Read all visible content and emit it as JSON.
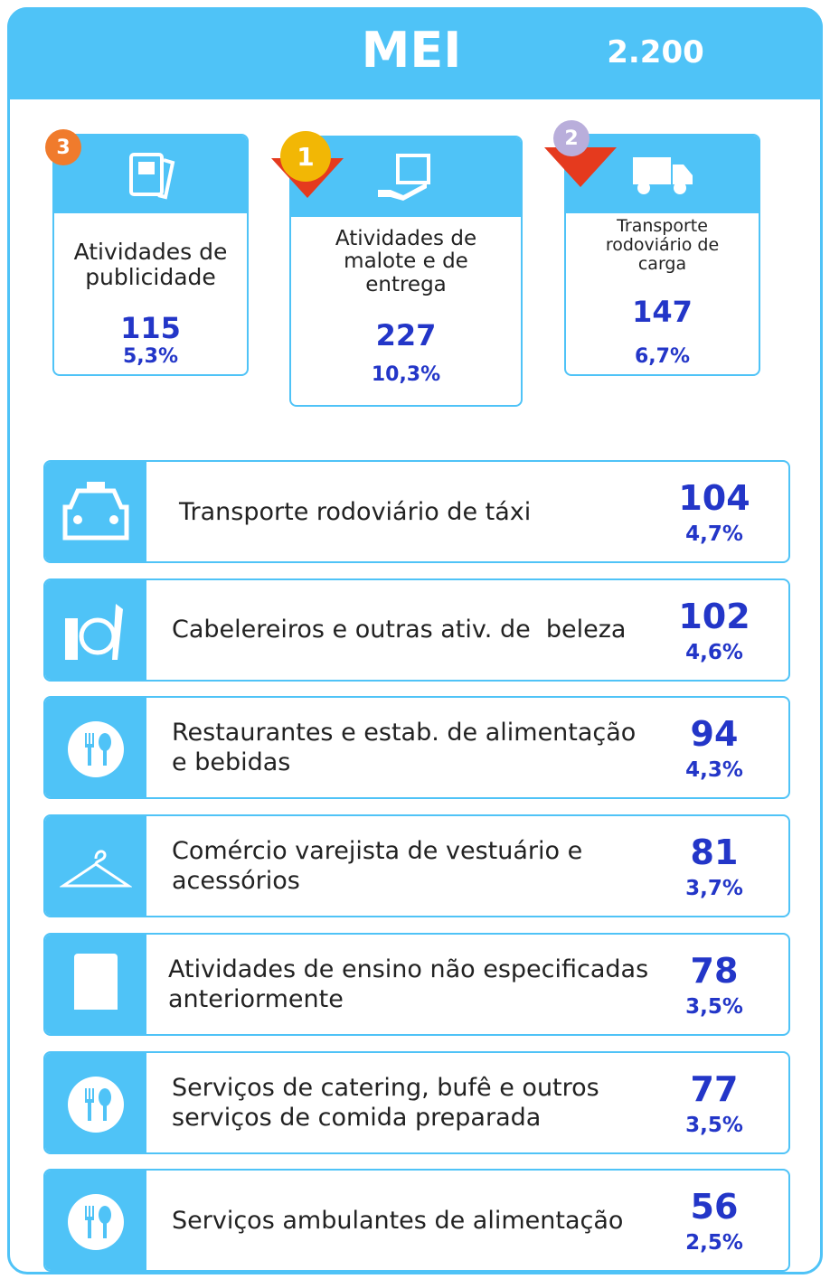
{
  "header": {
    "title": "MEI",
    "total": "2.200"
  },
  "podium": [
    {
      "rank": "3",
      "label": [
        "Atividades de",
        "publicidade"
      ],
      "count": "115",
      "pct": "5,3%"
    },
    {
      "rank": "1",
      "label": [
        "Atividades de",
        "malote e de",
        "entrega"
      ],
      "count": "227",
      "pct": "10,3%"
    },
    {
      "rank": "2",
      "label": [
        "Transporte",
        "rodoviário de",
        "carga"
      ],
      "count": "147",
      "pct": "6,7%"
    }
  ],
  "rows": [
    {
      "label": [
        "Transporte rodoviário de táxi"
      ],
      "count": "104",
      "pct": "4,7%"
    },
    {
      "label": [
        "Cabelereiros e outras ativ. de  beleza"
      ],
      "count": "102",
      "pct": "4,6%"
    },
    {
      "label": [
        "Restaurantes e estab. de alimentação",
        "e bebidas"
      ],
      "count": "94",
      "pct": "4,3%"
    },
    {
      "label": [
        "Comércio varejista de vestuário e",
        "acessórios"
      ],
      "count": "81",
      "pct": "3,7%"
    },
    {
      "label": [
        "Atividades de ensino não especificadas",
        "anteriormente"
      ],
      "count": "78",
      "pct": "3,5%"
    },
    {
      "label": [
        "Serviços de catering, bufê e outros",
        "serviços de comida preparada"
      ],
      "count": "77",
      "pct": "3,5%"
    },
    {
      "label": [
        "Serviços ambulantes de alimentação"
      ],
      "count": "56",
      "pct": "2,5%"
    }
  ]
}
